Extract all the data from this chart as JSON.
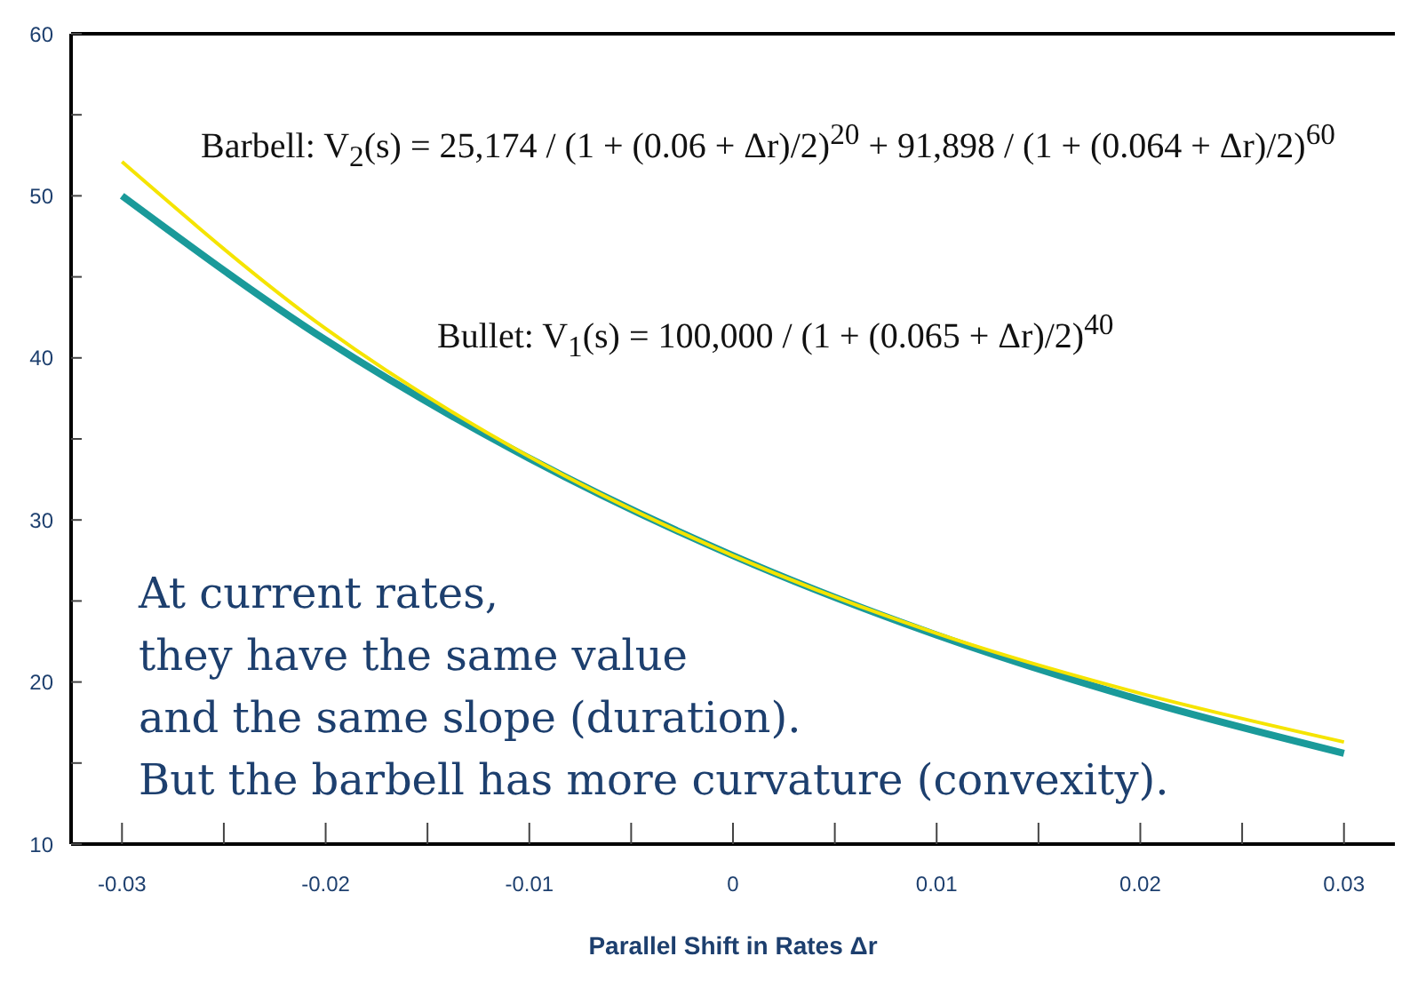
{
  "chart_data": {
    "type": "line",
    "xlabel": "Parallel Shift in Rates Δr",
    "x": [
      -0.03,
      -0.02,
      -0.01,
      0,
      0.01,
      0.02,
      0.03
    ],
    "series": [
      {
        "color": "#1a9a9a",
        "values": [
          50.0,
          41.1,
          33.8,
          27.8,
          22.9,
          18.9,
          15.6
        ]
      },
      {
        "color": "#f5e400",
        "values": [
          52.1,
          41.8,
          33.9,
          27.8,
          23.0,
          19.3,
          16.3
        ]
      }
    ],
    "xlim": [
      -0.0325,
      0.0325
    ],
    "xticks": [
      -0.03,
      {
        "value": -0.025,
        "label": null
      },
      -0.02,
      {
        "value": -0.015,
        "label": null
      },
      -0.01,
      {
        "value": -0.005,
        "label": null
      },
      0,
      {
        "value": 0.005,
        "label": null
      },
      0.01,
      {
        "value": 0.015,
        "label": null
      },
      0.02,
      {
        "value": 0.025,
        "label": null
      },
      0.03
    ],
    "ylim": [
      10,
      60
    ],
    "yticks": [
      10,
      {
        "value": 15,
        "label": null
      },
      20,
      {
        "value": 25,
        "label": null
      },
      30,
      {
        "value": 35,
        "label": null
      },
      40,
      {
        "value": 45,
        "label": null
      },
      50,
      {
        "value": 55,
        "label": null
      },
      60
    ],
    "grid": false,
    "legend": false,
    "marker": "none",
    "line_style": "solid",
    "annotations": [
      "Barbell: V$_{2}$(s) = 25,174 / (1 + (0.06 + Δr)/2)$^{20}$ + 91,898 / (1 + (0.064 + Δr)/2)$^{60}$",
      "Bullet: V$_{1}$(s) = 100,000 / (1 + (0.065 + Δr)/2)$^{40}$",
      "At current rates,",
      "they have the same value",
      "and the same slope (duration).",
      "But the barbell has more curvature (convexity)."
    ]
  }
}
